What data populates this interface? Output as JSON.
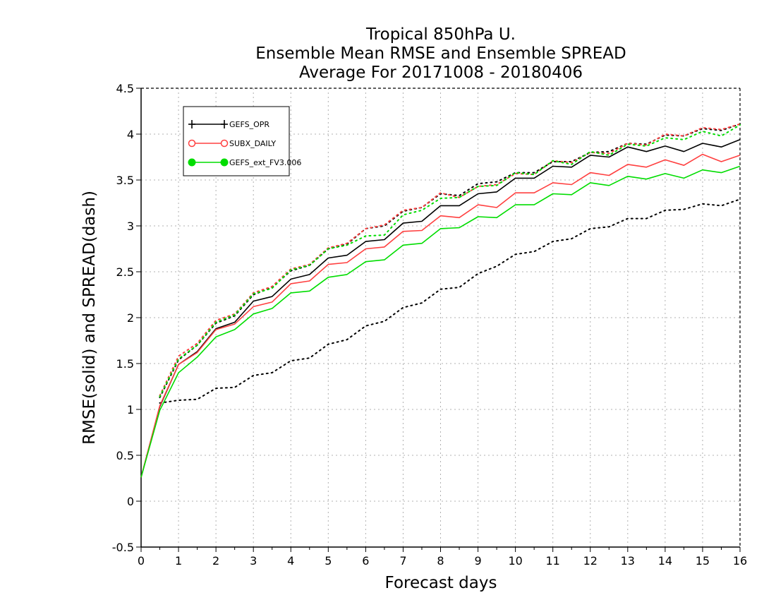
{
  "chart_data": {
    "type": "line",
    "title_lines": [
      "Tropical 850hPa U.",
      "Ensemble Mean RMSE and Ensemble SPREAD",
      "Average For 20171008 - 20180406"
    ],
    "xlabel": "Forecast days",
    "ylabel": "RMSE(solid) and SPREAD(dash)",
    "xlim": [
      0,
      16
    ],
    "ylim": [
      -0.5,
      4.5
    ],
    "xticks": [
      "0",
      "1",
      "2",
      "3",
      "4",
      "5",
      "6",
      "7",
      "8",
      "9",
      "10",
      "11",
      "12",
      "13",
      "14",
      "15",
      "16"
    ],
    "yticks": [
      "-0.5",
      "0",
      "0.5",
      "1",
      "1.5",
      "2",
      "2.5",
      "3",
      "3.5",
      "4",
      "4.5"
    ],
    "grid": true,
    "legend_position": "top-left",
    "x": [
      0,
      0.5,
      1,
      1.5,
      2,
      2.5,
      3,
      3.5,
      4,
      4.5,
      5,
      5.5,
      6,
      6.5,
      7,
      7.5,
      8,
      8.5,
      9,
      9.5,
      10,
      10.5,
      11,
      11.5,
      12,
      12.5,
      13,
      13.5,
      14,
      14.5,
      15,
      15.5,
      16
    ],
    "series": [
      {
        "name": "GEFS_OPR",
        "color": "#000000",
        "marker": "plus",
        "rmse": [
          0.26,
          1.03,
          1.49,
          1.63,
          1.88,
          1.95,
          2.18,
          2.23,
          2.42,
          2.47,
          2.65,
          2.68,
          2.83,
          2.85,
          3.03,
          3.05,
          3.22,
          3.22,
          3.35,
          3.37,
          3.52,
          3.52,
          3.65,
          3.64,
          3.77,
          3.75,
          3.86,
          3.81,
          3.87,
          3.81,
          3.9,
          3.86,
          3.94
        ],
        "spread": [
          null,
          1.13,
          1.54,
          1.7,
          1.94,
          2.02,
          2.25,
          2.33,
          2.51,
          2.57,
          2.75,
          2.8,
          2.97,
          3.0,
          3.16,
          3.2,
          3.35,
          3.33,
          3.46,
          3.48,
          3.58,
          3.58,
          3.7,
          3.7,
          3.8,
          3.81,
          3.9,
          3.89,
          3.99,
          3.98,
          4.06,
          4.04,
          4.11
        ]
      },
      {
        "name": "SUBX_DAILY",
        "color": "#ff4040",
        "marker": "open-circle",
        "rmse": [
          0.26,
          1.04,
          1.49,
          1.62,
          1.87,
          1.93,
          2.12,
          2.17,
          2.37,
          2.4,
          2.58,
          2.6,
          2.75,
          2.77,
          2.94,
          2.95,
          3.11,
          3.09,
          3.23,
          3.2,
          3.36,
          3.36,
          3.47,
          3.45,
          3.58,
          3.55,
          3.67,
          3.64,
          3.72,
          3.66,
          3.78,
          3.7,
          3.77
        ],
        "spread": [
          null,
          1.15,
          1.58,
          1.72,
          1.97,
          2.04,
          2.27,
          2.34,
          2.53,
          2.58,
          2.76,
          2.81,
          2.97,
          3.01,
          3.17,
          3.2,
          3.36,
          3.31,
          3.43,
          3.45,
          3.57,
          3.56,
          3.71,
          3.69,
          3.8,
          3.79,
          3.9,
          3.88,
          4.0,
          3.98,
          4.07,
          4.05,
          4.11
        ]
      },
      {
        "name": "GEFS_ext_FV3.006",
        "color": "#00dd00",
        "marker": "filled-circle",
        "rmse": [
          0.26,
          0.99,
          1.4,
          1.57,
          1.79,
          1.87,
          2.04,
          2.1,
          2.27,
          2.29,
          2.44,
          2.47,
          2.61,
          2.63,
          2.79,
          2.81,
          2.97,
          2.98,
          3.1,
          3.09,
          3.23,
          3.23,
          3.35,
          3.34,
          3.47,
          3.44,
          3.54,
          3.51,
          3.57,
          3.52,
          3.61,
          3.58,
          3.65
        ],
        "spread": [
          null,
          1.14,
          1.55,
          1.7,
          1.95,
          2.03,
          2.26,
          2.32,
          2.52,
          2.57,
          2.75,
          2.79,
          2.89,
          2.9,
          3.12,
          3.17,
          3.3,
          3.31,
          3.43,
          3.44,
          3.58,
          3.56,
          3.71,
          3.67,
          3.81,
          3.77,
          3.89,
          3.87,
          3.96,
          3.94,
          4.03,
          3.98,
          4.1
        ]
      }
    ],
    "extra_dotted_series": {
      "color": "#000000",
      "values": [
        null,
        1.07,
        1.1,
        1.11,
        1.23,
        1.24,
        1.37,
        1.4,
        1.53,
        1.56,
        1.71,
        1.76,
        1.91,
        1.96,
        2.11,
        2.16,
        2.31,
        2.33,
        2.48,
        2.56,
        2.69,
        2.72,
        2.83,
        2.86,
        2.97,
        2.99,
        3.08,
        3.08,
        3.17,
        3.18,
        3.24,
        3.22,
        3.29
      ]
    }
  }
}
